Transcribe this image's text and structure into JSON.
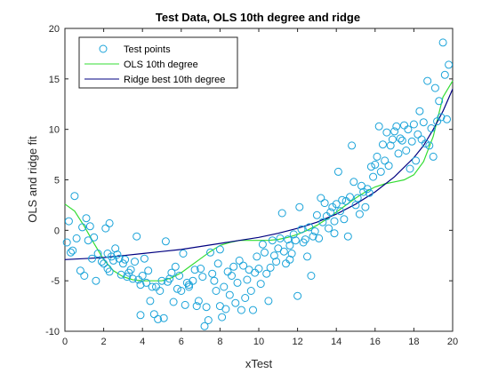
{
  "chart_data": {
    "type": "scatter",
    "title": "Test Data, OLS 10th degree and ridge",
    "xlabel": "xTest",
    "ylabel": "OLS and ridge fit",
    "xlim": [
      0,
      20
    ],
    "ylim": [
      -10,
      20
    ],
    "xticks": [
      "0",
      "2",
      "4",
      "6",
      "8",
      "10",
      "12",
      "14",
      "16",
      "18",
      "20"
    ],
    "yticks": [
      "-10",
      "-5",
      "0",
      "5",
      "10",
      "15",
      "20"
    ],
    "grid": false,
    "legend_position": "top-left",
    "colors": {
      "points": "#1aa3d9",
      "ols": "#33dd33",
      "ridge": "#000080"
    },
    "legend": [
      {
        "label": "Test points",
        "kind": "marker",
        "color": "#1aa3d9"
      },
      {
        "label": "OLS 10th degree",
        "kind": "line",
        "color": "#33dd33"
      },
      {
        "label": "Ridge best 10th degree",
        "kind": "line",
        "color": "#000080"
      }
    ],
    "series": [
      {
        "name": "Test points",
        "type": "scatter",
        "points": [
          [
            0.1,
            -1.2
          ],
          [
            0.2,
            0.9
          ],
          [
            0.3,
            -2.2
          ],
          [
            0.4,
            -2.0
          ],
          [
            0.5,
            3.4
          ],
          [
            0.6,
            -0.8
          ],
          [
            0.8,
            -4.0
          ],
          [
            0.9,
            0.3
          ],
          [
            1.0,
            -4.5
          ],
          [
            1.1,
            1.2
          ],
          [
            1.2,
            -1.0
          ],
          [
            1.3,
            0.4
          ],
          [
            1.4,
            -2.8
          ],
          [
            1.5,
            -0.7
          ],
          [
            1.6,
            -5.0
          ],
          [
            1.7,
            -2.3
          ],
          [
            1.9,
            -3.1
          ],
          [
            2.0,
            -3.3
          ],
          [
            2.1,
            0.2
          ],
          [
            2.2,
            -3.8
          ],
          [
            2.3,
            -4.1
          ],
          [
            2.3,
            0.7
          ],
          [
            2.4,
            -2.6
          ],
          [
            2.5,
            -3.0
          ],
          [
            2.6,
            -1.8
          ],
          [
            2.7,
            -2.4
          ],
          [
            2.8,
            -2.8
          ],
          [
            2.9,
            -4.4
          ],
          [
            3.0,
            -3.3
          ],
          [
            3.1,
            -2.9
          ],
          [
            3.2,
            -4.6
          ],
          [
            3.3,
            -4.2
          ],
          [
            3.4,
            -3.9
          ],
          [
            3.5,
            -4.8
          ],
          [
            3.6,
            -3.1
          ],
          [
            3.7,
            -0.6
          ],
          [
            3.8,
            -4.9
          ],
          [
            3.9,
            -8.4
          ],
          [
            4.0,
            -4.5
          ],
          [
            4.1,
            -2.8
          ],
          [
            4.2,
            -5.2
          ],
          [
            4.3,
            -4.0
          ],
          [
            4.4,
            -7.0
          ],
          [
            4.5,
            -5.6
          ],
          [
            4.6,
            -8.3
          ],
          [
            4.7,
            -5.6
          ],
          [
            4.8,
            -8.8
          ],
          [
            4.9,
            -6.0
          ],
          [
            5.0,
            -5.0
          ],
          [
            5.1,
            -8.7
          ],
          [
            5.2,
            -1.1
          ],
          [
            5.3,
            -5.1
          ],
          [
            5.4,
            -4.8
          ],
          [
            5.5,
            -4.2
          ],
          [
            5.6,
            -7.1
          ],
          [
            5.7,
            -3.6
          ],
          [
            5.8,
            -5.8
          ],
          [
            5.9,
            -4.5
          ],
          [
            6.0,
            -6.0
          ],
          [
            6.1,
            -2.3
          ],
          [
            6.2,
            -7.4
          ],
          [
            6.3,
            -5.2
          ],
          [
            6.4,
            -5.4
          ],
          [
            6.6,
            -5.0
          ],
          [
            6.7,
            -3.9
          ],
          [
            6.8,
            -7.5
          ],
          [
            6.9,
            -7.0
          ],
          [
            7.0,
            -3.8
          ],
          [
            7.1,
            -4.6
          ],
          [
            7.2,
            -9.5
          ],
          [
            7.3,
            -7.6
          ],
          [
            7.4,
            -8.9
          ],
          [
            7.5,
            -2.2
          ],
          [
            7.6,
            -4.3
          ],
          [
            7.7,
            -5.0
          ],
          [
            7.8,
            -6.0
          ],
          [
            7.9,
            -3.3
          ],
          [
            8.0,
            -7.5
          ],
          [
            8.1,
            -8.6
          ],
          [
            8.2,
            -5.6
          ],
          [
            8.3,
            -7.8
          ],
          [
            8.4,
            -4.1
          ],
          [
            8.5,
            -6.4
          ],
          [
            8.6,
            -4.5
          ],
          [
            8.7,
            -3.6
          ],
          [
            8.8,
            -7.2
          ],
          [
            8.9,
            -5.2
          ],
          [
            9.0,
            -3.0
          ],
          [
            9.1,
            -7.9
          ],
          [
            9.2,
            -3.5
          ],
          [
            9.3,
            -6.7
          ],
          [
            9.4,
            -4.9
          ],
          [
            9.5,
            -3.9
          ],
          [
            9.6,
            -6.0
          ],
          [
            9.7,
            -7.9
          ],
          [
            9.8,
            -4.2
          ],
          [
            9.9,
            -2.6
          ],
          [
            10.0,
            -3.8
          ],
          [
            10.1,
            -5.3
          ],
          [
            10.2,
            -1.4
          ],
          [
            10.3,
            -2.2
          ],
          [
            10.4,
            -4.3
          ],
          [
            10.5,
            -7.0
          ],
          [
            10.6,
            -3.7
          ],
          [
            10.7,
            -1.0
          ],
          [
            10.8,
            -2.5
          ],
          [
            10.9,
            -3.1
          ],
          [
            11.0,
            -1.8
          ],
          [
            11.1,
            -0.8
          ],
          [
            11.2,
            1.7
          ],
          [
            11.3,
            -2.1
          ],
          [
            11.4,
            -3.3
          ],
          [
            11.5,
            -0.9
          ],
          [
            11.6,
            -1.5
          ],
          [
            11.7,
            -2.3
          ],
          [
            11.8,
            -0.4
          ],
          [
            11.9,
            -1.0
          ],
          [
            12.0,
            -6.5
          ],
          [
            12.1,
            2.3
          ],
          [
            12.2,
            0.1
          ],
          [
            12.3,
            -1.2
          ],
          [
            12.4,
            -0.9
          ],
          [
            12.5,
            -2.6
          ],
          [
            12.6,
            0.3
          ],
          [
            12.7,
            -4.5
          ],
          [
            12.8,
            -0.6
          ],
          [
            12.9,
            -0.1
          ],
          [
            13.0,
            1.5
          ],
          [
            13.1,
            -0.8
          ],
          [
            13.2,
            3.2
          ],
          [
            13.3,
            0.8
          ],
          [
            13.4,
            2.7
          ],
          [
            13.5,
            1.4
          ],
          [
            13.6,
            0.2
          ],
          [
            13.7,
            1.8
          ],
          [
            13.8,
            2.3
          ],
          [
            13.9,
            0.9
          ],
          [
            14.0,
            2.6
          ],
          [
            14.1,
            5.8
          ],
          [
            14.2,
            1.9
          ],
          [
            14.3,
            3.0
          ],
          [
            14.4,
            1.1
          ],
          [
            14.5,
            2.9
          ],
          [
            14.6,
            -0.6
          ],
          [
            14.7,
            3.3
          ],
          [
            14.8,
            8.4
          ],
          [
            14.9,
            4.8
          ],
          [
            15.0,
            2.5
          ],
          [
            15.1,
            3.2
          ],
          [
            15.2,
            1.6
          ],
          [
            15.3,
            4.4
          ],
          [
            15.4,
            3.8
          ],
          [
            15.5,
            2.3
          ],
          [
            15.6,
            4.1
          ],
          [
            15.7,
            3.7
          ],
          [
            15.8,
            6.3
          ],
          [
            15.9,
            5.3
          ],
          [
            16.0,
            6.5
          ],
          [
            16.1,
            7.3
          ],
          [
            16.2,
            10.3
          ],
          [
            16.3,
            5.8
          ],
          [
            16.4,
            8.5
          ],
          [
            16.5,
            6.9
          ],
          [
            16.6,
            9.7
          ],
          [
            16.7,
            6.4
          ],
          [
            16.8,
            8.4
          ],
          [
            16.9,
            9.0
          ],
          [
            17.0,
            9.8
          ],
          [
            17.1,
            10.3
          ],
          [
            17.2,
            7.6
          ],
          [
            17.3,
            9.1
          ],
          [
            17.4,
            8.9
          ],
          [
            17.5,
            10.4
          ],
          [
            17.6,
            7.9
          ],
          [
            17.7,
            10.0
          ],
          [
            17.8,
            6.1
          ],
          [
            17.9,
            8.8
          ],
          [
            18.0,
            10.5
          ],
          [
            18.1,
            6.9
          ],
          [
            18.2,
            9.5
          ],
          [
            18.3,
            11.8
          ],
          [
            18.4,
            9.0
          ],
          [
            18.5,
            10.7
          ],
          [
            18.6,
            8.6
          ],
          [
            18.7,
            14.8
          ],
          [
            18.8,
            8.4
          ],
          [
            18.9,
            10.1
          ],
          [
            19.0,
            7.3
          ],
          [
            19.1,
            14.1
          ],
          [
            19.2,
            10.8
          ],
          [
            19.3,
            12.8
          ],
          [
            19.4,
            11.2
          ],
          [
            19.5,
            18.6
          ],
          [
            19.6,
            15.4
          ],
          [
            19.7,
            11.0
          ],
          [
            19.8,
            16.4
          ],
          [
            6.4,
            -5.6
          ],
          [
            11.6,
            -2.9
          ],
          [
            3.9,
            -5.4
          ],
          [
            8.0,
            -1.9
          ],
          [
            13.9,
            -0.3
          ],
          [
            2.2,
            -2.3
          ]
        ]
      },
      {
        "name": "OLS 10th degree",
        "type": "line",
        "points": [
          [
            0,
            2.6
          ],
          [
            0.5,
            1.9
          ],
          [
            1,
            0.4
          ],
          [
            1.5,
            -1.3
          ],
          [
            2,
            -2.9
          ],
          [
            2.5,
            -4.0
          ],
          [
            3,
            -4.6
          ],
          [
            3.5,
            -4.9
          ],
          [
            4,
            -5.0
          ],
          [
            4.5,
            -5.0
          ],
          [
            5,
            -5.0
          ],
          [
            5.5,
            -4.7
          ],
          [
            6,
            -4.2
          ],
          [
            6.5,
            -3.5
          ],
          [
            7,
            -2.8
          ],
          [
            7.5,
            -2.1
          ],
          [
            8,
            -1.5
          ],
          [
            8.5,
            -1.2
          ],
          [
            9,
            -1.0
          ],
          [
            9.5,
            -1.0
          ],
          [
            10,
            -1.0
          ],
          [
            10.5,
            -1.0
          ],
          [
            11,
            -0.9
          ],
          [
            11.5,
            -0.7
          ],
          [
            12,
            -0.4
          ],
          [
            12.5,
            0.0
          ],
          [
            13,
            0.5
          ],
          [
            13.5,
            1.1
          ],
          [
            14,
            1.8
          ],
          [
            14.5,
            2.5
          ],
          [
            15,
            3.2
          ],
          [
            15.5,
            3.8
          ],
          [
            16,
            4.3
          ],
          [
            16.5,
            4.6
          ],
          [
            17,
            4.8
          ],
          [
            17.5,
            5.0
          ],
          [
            18,
            5.5
          ],
          [
            18.5,
            6.8
          ],
          [
            19,
            9.3
          ],
          [
            19.5,
            13.2
          ],
          [
            20,
            14.8
          ]
        ]
      },
      {
        "name": "Ridge best 10th degree",
        "type": "line",
        "points": [
          [
            0,
            -2.9
          ],
          [
            1,
            -2.8
          ],
          [
            2,
            -2.7
          ],
          [
            3,
            -2.5
          ],
          [
            4,
            -2.3
          ],
          [
            5,
            -2.1
          ],
          [
            6,
            -1.9
          ],
          [
            7,
            -1.6
          ],
          [
            8,
            -1.3
          ],
          [
            9,
            -1.0
          ],
          [
            10,
            -0.7
          ],
          [
            11,
            -0.3
          ],
          [
            12,
            0.2
          ],
          [
            13,
            0.8
          ],
          [
            14,
            1.6
          ],
          [
            15,
            2.6
          ],
          [
            16,
            3.8
          ],
          [
            17,
            5.3
          ],
          [
            18,
            7.2
          ],
          [
            18.5,
            8.4
          ],
          [
            19,
            10.0
          ],
          [
            19.5,
            11.8
          ],
          [
            20,
            14.0
          ]
        ]
      }
    ]
  }
}
